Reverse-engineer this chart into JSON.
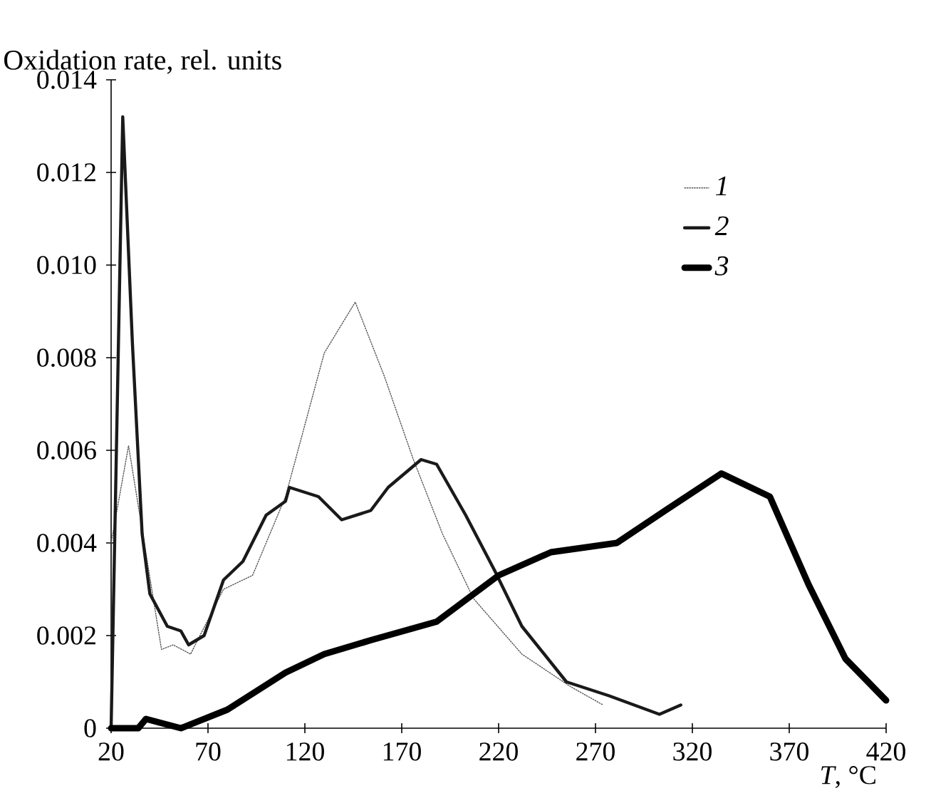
{
  "chart_data": {
    "type": "line",
    "xlabel": "*T*, °C",
    "ylabel": "Oxidation rate, rel. units",
    "xlim": [
      20,
      420
    ],
    "xticks": [
      20,
      70,
      120,
      170,
      220,
      270,
      320,
      370,
      420
    ],
    "ylim": [
      0,
      0.014
    ],
    "yticks": [
      0,
      0.002,
      0.004,
      0.006,
      0.008,
      {
        "value": 0.01,
        "label": "0.010"
      },
      0.012,
      0.014
    ],
    "legend": "top right",
    "grid": false,
    "marker": "none",
    "series": [
      {
        "name": "1",
        "color": "#555555",
        "line_style": "dotted",
        "x": [
          20,
          29,
          46,
          52,
          61,
          78,
          93,
          110,
          130,
          146,
          161,
          176,
          191,
          207,
          232,
          257,
          274
        ],
        "values": [
          0.004,
          0.0061,
          0.0017,
          0.0018,
          0.0016,
          0.003,
          0.0033,
          0.005,
          0.0081,
          0.0092,
          0.0076,
          0.0058,
          0.0042,
          0.0028,
          0.0016,
          0.0009,
          0.0005
        ]
      },
      {
        "name": "2",
        "color": "#1a1a1a",
        "line_style": "solid",
        "x": [
          20,
          26,
          31,
          36,
          40,
          49,
          56,
          60,
          68,
          78,
          88,
          100,
          110,
          112,
          127,
          139,
          154,
          163,
          180,
          188,
          203,
          218,
          232,
          255,
          277,
          303,
          314
        ],
        "values": [
          0,
          0.0132,
          0.0083,
          0.0042,
          0.0029,
          0.0022,
          0.0021,
          0.0018,
          0.002,
          0.0032,
          0.0036,
          0.0046,
          0.0049,
          0.0052,
          0.005,
          0.0045,
          0.0047,
          0.0052,
          0.0058,
          0.0057,
          0.0046,
          0.0034,
          0.0022,
          0.001,
          0.0007,
          0.0003,
          0.0005
        ]
      },
      {
        "name": "3",
        "color": "#000000",
        "line_style": "solid",
        "x": [
          20,
          34,
          38,
          56,
          80,
          110,
          130,
          154,
          171,
          188,
          220,
          247,
          281,
          306,
          335,
          360,
          380,
          399,
          420
        ],
        "values": [
          0,
          0,
          0.0002,
          0,
          0.0004,
          0.0012,
          0.0016,
          0.0019,
          0.0021,
          0.0023,
          0.0033,
          0.0038,
          0.004,
          0.0047,
          0.0055,
          0.005,
          0.0031,
          0.0015,
          0.0006
        ]
      }
    ]
  }
}
